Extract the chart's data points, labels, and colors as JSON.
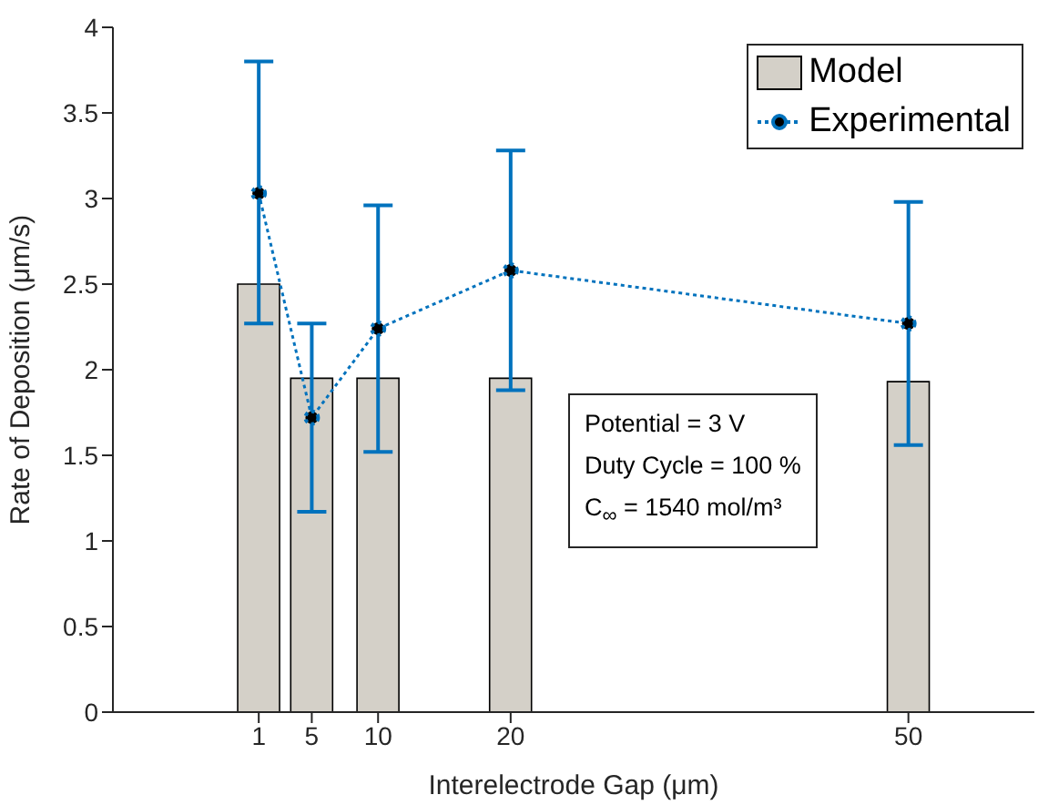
{
  "chart_data": {
    "type": "bar",
    "xlabel": "Interelectrode Gap (μm)",
    "ylabel": "Rate of Deposition (μm/s)",
    "x": [
      1,
      5,
      10,
      20,
      50
    ],
    "series": [
      {
        "name": "Model",
        "color": "#d4d0c8",
        "values": [
          2.5,
          1.95,
          1.95,
          1.95,
          1.93
        ]
      },
      {
        "name": "Experimental",
        "type": "line",
        "color": "#0072bd",
        "line_style": "dotted",
        "marker": "circle",
        "values": [
          3.03,
          1.72,
          2.24,
          2.58,
          2.27
        ],
        "errors": [
          [
            2.27,
            3.8
          ],
          [
            1.17,
            2.27
          ],
          [
            1.52,
            2.96
          ],
          [
            1.88,
            3.28
          ],
          [
            1.56,
            2.98
          ]
        ]
      }
    ],
    "xlim": [
      -10,
      59.5
    ],
    "xticks": [
      1,
      5,
      10,
      20,
      50
    ],
    "ylim": [
      0,
      4
    ],
    "yticks": [
      0,
      0.5,
      1,
      1.5,
      2,
      2.5,
      3,
      3.5,
      4
    ],
    "grid": false,
    "legend": "top right",
    "annotations": [
      "Potential = 3 V",
      "Duty Cycle = 100 %",
      "C$_{∞}$ = 1540 mol/m³"
    ]
  }
}
